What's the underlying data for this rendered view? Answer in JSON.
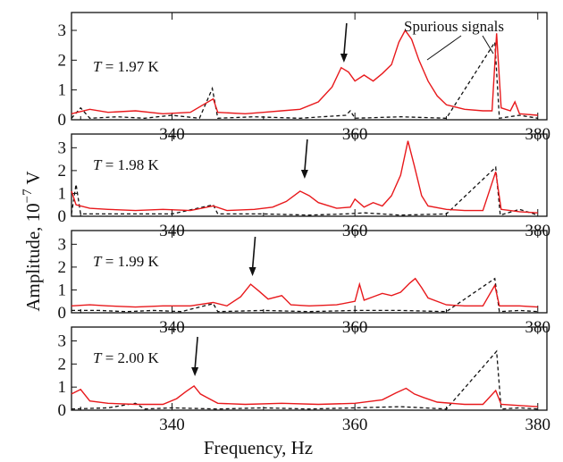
{
  "chart_data": {
    "type": "line",
    "xlabel": "Frequency, Hz",
    "ylabel_main": "Amplitude, 10",
    "ylabel_exp": "−7",
    "ylabel_unit": " V",
    "annotation": "Spurious signals",
    "xlim": [
      329,
      381
    ],
    "ylim": [
      0,
      3.6
    ],
    "xticks": [
      340,
      360,
      380
    ],
    "yticks": [
      0,
      1,
      2,
      3
    ],
    "colors": {
      "red": "#e8191c",
      "black": "#111111"
    },
    "panels": [
      {
        "label_prefix": "T",
        "label_rest": " = 1.97 K",
        "arrow_x": 358.8,
        "red": [
          [
            329,
            0.2
          ],
          [
            331,
            0.35
          ],
          [
            333,
            0.25
          ],
          [
            336,
            0.3
          ],
          [
            339,
            0.2
          ],
          [
            342,
            0.25
          ],
          [
            344.5,
            0.7
          ],
          [
            345,
            0.25
          ],
          [
            348,
            0.2
          ],
          [
            350,
            0.25
          ],
          [
            352,
            0.3
          ],
          [
            354,
            0.35
          ],
          [
            356,
            0.6
          ],
          [
            357.5,
            1.1
          ],
          [
            358.5,
            1.75
          ],
          [
            359.3,
            1.6
          ],
          [
            360,
            1.3
          ],
          [
            361,
            1.5
          ],
          [
            362,
            1.3
          ],
          [
            363,
            1.55
          ],
          [
            364,
            1.85
          ],
          [
            364.8,
            2.6
          ],
          [
            365.5,
            3.0
          ],
          [
            366.2,
            2.7
          ],
          [
            367,
            2.0
          ],
          [
            368,
            1.3
          ],
          [
            369,
            0.8
          ],
          [
            370,
            0.5
          ],
          [
            372,
            0.35
          ],
          [
            374,
            0.3
          ],
          [
            375,
            0.3
          ],
          [
            375.5,
            2.9
          ],
          [
            376,
            0.4
          ],
          [
            377,
            0.3
          ],
          [
            377.5,
            0.6
          ],
          [
            378,
            0.2
          ],
          [
            380,
            0.15
          ]
        ],
        "black": [
          [
            329,
            0.05
          ],
          [
            330,
            0.4
          ],
          [
            331,
            0.05
          ],
          [
            334,
            0.1
          ],
          [
            337,
            0.05
          ],
          [
            340,
            0.15
          ],
          [
            343,
            0.05
          ],
          [
            344.4,
            1.05
          ],
          [
            345,
            0.05
          ],
          [
            349,
            0.1
          ],
          [
            354,
            0.05
          ],
          [
            359,
            0.15
          ],
          [
            359.5,
            0.3
          ],
          [
            360,
            0.05
          ],
          [
            365,
            0.1
          ],
          [
            370,
            0.05
          ],
          [
            375.3,
            2.6
          ],
          [
            375.8,
            0.05
          ],
          [
            378,
            0.15
          ],
          [
            380,
            0.05
          ]
        ]
      },
      {
        "label_prefix": "T",
        "label_rest": " = 1.98 K",
        "arrow_x": 354.5,
        "red": [
          [
            329,
            1.1
          ],
          [
            329.5,
            0.5
          ],
          [
            331,
            0.35
          ],
          [
            333,
            0.3
          ],
          [
            336,
            0.25
          ],
          [
            339,
            0.3
          ],
          [
            342,
            0.25
          ],
          [
            344.5,
            0.45
          ],
          [
            346,
            0.25
          ],
          [
            349,
            0.3
          ],
          [
            351,
            0.4
          ],
          [
            352.5,
            0.65
          ],
          [
            354,
            1.1
          ],
          [
            355,
            0.9
          ],
          [
            356,
            0.6
          ],
          [
            358,
            0.35
          ],
          [
            359.5,
            0.4
          ],
          [
            360,
            0.75
          ],
          [
            361,
            0.4
          ],
          [
            362,
            0.6
          ],
          [
            363,
            0.45
          ],
          [
            364,
            0.9
          ],
          [
            365,
            1.8
          ],
          [
            365.8,
            3.3
          ],
          [
            366.5,
            2.2
          ],
          [
            367.3,
            0.9
          ],
          [
            368,
            0.45
          ],
          [
            370,
            0.3
          ],
          [
            372,
            0.25
          ],
          [
            374,
            0.25
          ],
          [
            375.4,
            1.95
          ],
          [
            376,
            0.3
          ],
          [
            378,
            0.2
          ],
          [
            380,
            0.15
          ]
        ],
        "black": [
          [
            329,
            0.1
          ],
          [
            329.5,
            1.4
          ],
          [
            330,
            0.1
          ],
          [
            333,
            0.1
          ],
          [
            336,
            0.1
          ],
          [
            340,
            0.1
          ],
          [
            344.5,
            0.5
          ],
          [
            345,
            0.1
          ],
          [
            350,
            0.1
          ],
          [
            355,
            0.05
          ],
          [
            359,
            0.1
          ],
          [
            361,
            0.15
          ],
          [
            365,
            0.05
          ],
          [
            370,
            0.1
          ],
          [
            375.4,
            2.15
          ],
          [
            375.9,
            0.05
          ],
          [
            378,
            0.3
          ],
          [
            380,
            0.05
          ]
        ]
      },
      {
        "label_prefix": "T",
        "label_rest": " = 1.99 K",
        "arrow_x": 348.8,
        "red": [
          [
            329,
            0.3
          ],
          [
            331,
            0.35
          ],
          [
            333,
            0.3
          ],
          [
            336,
            0.25
          ],
          [
            339,
            0.3
          ],
          [
            342,
            0.3
          ],
          [
            344.5,
            0.45
          ],
          [
            346,
            0.3
          ],
          [
            347.5,
            0.7
          ],
          [
            348.6,
            1.25
          ],
          [
            349.5,
            0.95
          ],
          [
            350.5,
            0.6
          ],
          [
            352,
            0.75
          ],
          [
            353,
            0.35
          ],
          [
            355,
            0.3
          ],
          [
            358,
            0.35
          ],
          [
            360,
            0.5
          ],
          [
            360.5,
            1.25
          ],
          [
            361,
            0.55
          ],
          [
            362,
            0.7
          ],
          [
            363,
            0.85
          ],
          [
            364,
            0.75
          ],
          [
            365,
            0.9
          ],
          [
            366,
            1.3
          ],
          [
            366.6,
            1.5
          ],
          [
            367.3,
            1.1
          ],
          [
            368,
            0.65
          ],
          [
            370,
            0.35
          ],
          [
            372,
            0.3
          ],
          [
            374,
            0.3
          ],
          [
            375.3,
            1.2
          ],
          [
            375.8,
            0.3
          ],
          [
            378,
            0.3
          ],
          [
            380,
            0.25
          ]
        ],
        "black": [
          [
            329,
            0.1
          ],
          [
            332,
            0.1
          ],
          [
            335,
            0.05
          ],
          [
            338,
            0.1
          ],
          [
            341,
            0.05
          ],
          [
            344.5,
            0.4
          ],
          [
            345,
            0.05
          ],
          [
            350,
            0.1
          ],
          [
            355,
            0.05
          ],
          [
            360,
            0.1
          ],
          [
            365,
            0.1
          ],
          [
            370,
            0.05
          ],
          [
            375.3,
            1.5
          ],
          [
            375.8,
            0.05
          ],
          [
            378,
            0.1
          ],
          [
            380,
            0.05
          ]
        ]
      },
      {
        "label_prefix": "T",
        "label_rest": " = 2.00 K",
        "arrow_x": 342.5,
        "red": [
          [
            329,
            0.7
          ],
          [
            330,
            0.9
          ],
          [
            331,
            0.4
          ],
          [
            333,
            0.3
          ],
          [
            336,
            0.25
          ],
          [
            339,
            0.25
          ],
          [
            340.5,
            0.5
          ],
          [
            341.5,
            0.8
          ],
          [
            342.4,
            1.05
          ],
          [
            343.1,
            0.7
          ],
          [
            343.8,
            0.55
          ],
          [
            345,
            0.3
          ],
          [
            348,
            0.25
          ],
          [
            352,
            0.3
          ],
          [
            356,
            0.25
          ],
          [
            360,
            0.3
          ],
          [
            363,
            0.45
          ],
          [
            364.5,
            0.75
          ],
          [
            365.6,
            0.95
          ],
          [
            366.5,
            0.7
          ],
          [
            367.5,
            0.55
          ],
          [
            369,
            0.35
          ],
          [
            372,
            0.25
          ],
          [
            374,
            0.25
          ],
          [
            375.4,
            0.85
          ],
          [
            376,
            0.25
          ],
          [
            378,
            0.2
          ],
          [
            380,
            0.15
          ]
        ],
        "black": [
          [
            329,
            0.05
          ],
          [
            333,
            0.1
          ],
          [
            336,
            0.3
          ],
          [
            337,
            0.05
          ],
          [
            340,
            0.1
          ],
          [
            345,
            0.05
          ],
          [
            350,
            0.1
          ],
          [
            355,
            0.05
          ],
          [
            360,
            0.1
          ],
          [
            365,
            0.15
          ],
          [
            370,
            0.05
          ],
          [
            375.5,
            2.55
          ],
          [
            376,
            0.05
          ],
          [
            378,
            0.1
          ],
          [
            380,
            0.05
          ]
        ]
      }
    ]
  }
}
